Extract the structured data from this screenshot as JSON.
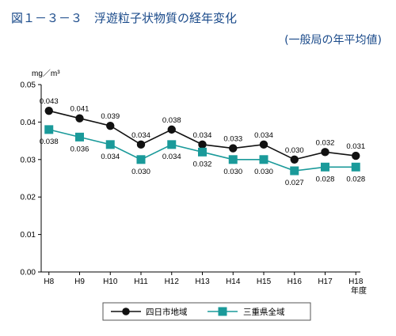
{
  "figure": {
    "title": "図１－３－３　浮遊粒子状物質の経年変化",
    "subtitle": "(一般局の年平均値)"
  },
  "chart_data": {
    "type": "line",
    "categories": [
      "H8",
      "H9",
      "H10",
      "H11",
      "H12",
      "H13",
      "H14",
      "H15",
      "H16",
      "H17",
      "H18"
    ],
    "series": [
      {
        "name": "四日市地域",
        "values": [
          0.043,
          0.041,
          0.039,
          0.034,
          0.038,
          0.034,
          0.033,
          0.034,
          0.03,
          0.032,
          0.031
        ],
        "labels": [
          "0.043",
          "0.041",
          "0.039",
          "0.034",
          "0.038",
          "0.034",
          "0.033",
          "0.034",
          "0.030",
          "0.032",
          "0.031"
        ],
        "color": "#111111",
        "marker": "circle"
      },
      {
        "name": "三重県全域",
        "values": [
          0.038,
          0.036,
          0.034,
          0.03,
          0.034,
          0.032,
          0.03,
          0.03,
          0.027,
          0.028,
          0.028
        ],
        "labels": [
          "0.038",
          "0.036",
          "0.034",
          "0.030",
          "0.034",
          "0.032",
          "0.030",
          "0.030",
          "0.027",
          "0.028",
          "0.028"
        ],
        "color": "#1a9a9a",
        "marker": "square"
      }
    ],
    "ylabel": "mg／m³",
    "xunit": "年度",
    "ylim": [
      0,
      0.05
    ],
    "yticks": [
      0.05,
      0.04,
      0.03,
      0.02,
      0.01,
      0.0
    ],
    "ytick_labels": [
      "0.05",
      "0.04",
      "0.03",
      "0.02",
      "0.01",
      "0.00"
    ],
    "grid": false,
    "legend_position": "bottom"
  }
}
